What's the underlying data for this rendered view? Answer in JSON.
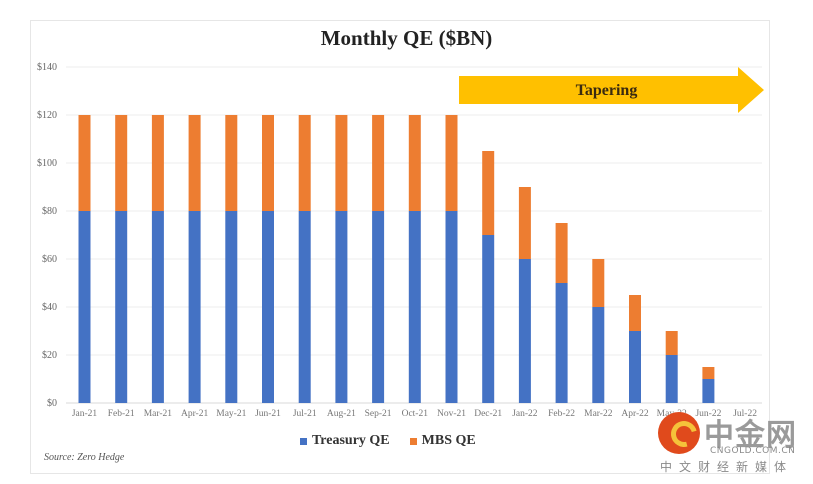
{
  "chart_data": {
    "type": "bar",
    "stacked": true,
    "title": "Monthly QE ($BN)",
    "xlabel": "",
    "ylabel": "",
    "ylim": [
      0,
      140
    ],
    "yticks": [
      0,
      20,
      40,
      60,
      80,
      100,
      120,
      140
    ],
    "ytick_labels": [
      "$0",
      "$20",
      "$40",
      "$60",
      "$80",
      "$100",
      "$120",
      "$140"
    ],
    "grid": true,
    "legend_position": "bottom-center",
    "categories": [
      "Jan-21",
      "Feb-21",
      "Mar-21",
      "Apr-21",
      "May-21",
      "Jun-21",
      "Jul-21",
      "Aug-21",
      "Sep-21",
      "Oct-21",
      "Nov-21",
      "Dec-21",
      "Jan-22",
      "Feb-22",
      "Mar-22",
      "Apr-22",
      "May-22",
      "Jun-22",
      "Jul-22"
    ],
    "series": [
      {
        "name": "Treasury QE",
        "color": "#4472c4",
        "values": [
          80,
          80,
          80,
          80,
          80,
          80,
          80,
          80,
          80,
          80,
          80,
          70,
          60,
          50,
          40,
          30,
          20,
          10,
          0
        ]
      },
      {
        "name": "MBS QE",
        "color": "#ed7d31",
        "values": [
          40,
          40,
          40,
          40,
          40,
          40,
          40,
          40,
          40,
          40,
          40,
          35,
          30,
          25,
          20,
          15,
          10,
          5,
          0
        ]
      }
    ],
    "annotations": [
      {
        "type": "arrow",
        "text": "Tapering",
        "from_category": "Dec-21",
        "to_category": "Jul-22",
        "color": "#ffc000"
      }
    ],
    "source": "Source: Zero Hedge"
  },
  "watermark": {
    "brand": "中金网",
    "domain": "CNGOLD.COM.CN",
    "tagline": "中文财经新媒体"
  }
}
